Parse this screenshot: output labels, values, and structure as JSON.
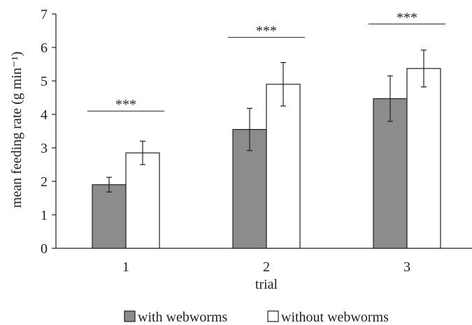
{
  "chart_data": {
    "type": "bar",
    "categories": [
      "1",
      "2",
      "3"
    ],
    "series": [
      {
        "name": "with webworms",
        "values": [
          1.9,
          3.55,
          4.47
        ],
        "error": [
          0.22,
          0.63,
          0.68
        ],
        "color": "#8c8c8e"
      },
      {
        "name": "without webworms",
        "values": [
          2.85,
          4.9,
          5.37
        ],
        "error": [
          0.35,
          0.65,
          0.55
        ],
        "color": "#ffffff"
      }
    ],
    "significance": [
      {
        "category": "1",
        "label": "***",
        "y": 4.1
      },
      {
        "category": "2",
        "label": "***",
        "y": 6.3
      },
      {
        "category": "3",
        "label": "***",
        "y": 6.7
      }
    ],
    "xlabel": "trial",
    "ylabel": "mean feeding rate (g min⁻¹)",
    "ylim": [
      0,
      7
    ],
    "yticks": [
      0,
      1,
      2,
      3,
      4,
      5,
      6,
      7
    ],
    "grid": false,
    "legend_position": "bottom-center"
  }
}
